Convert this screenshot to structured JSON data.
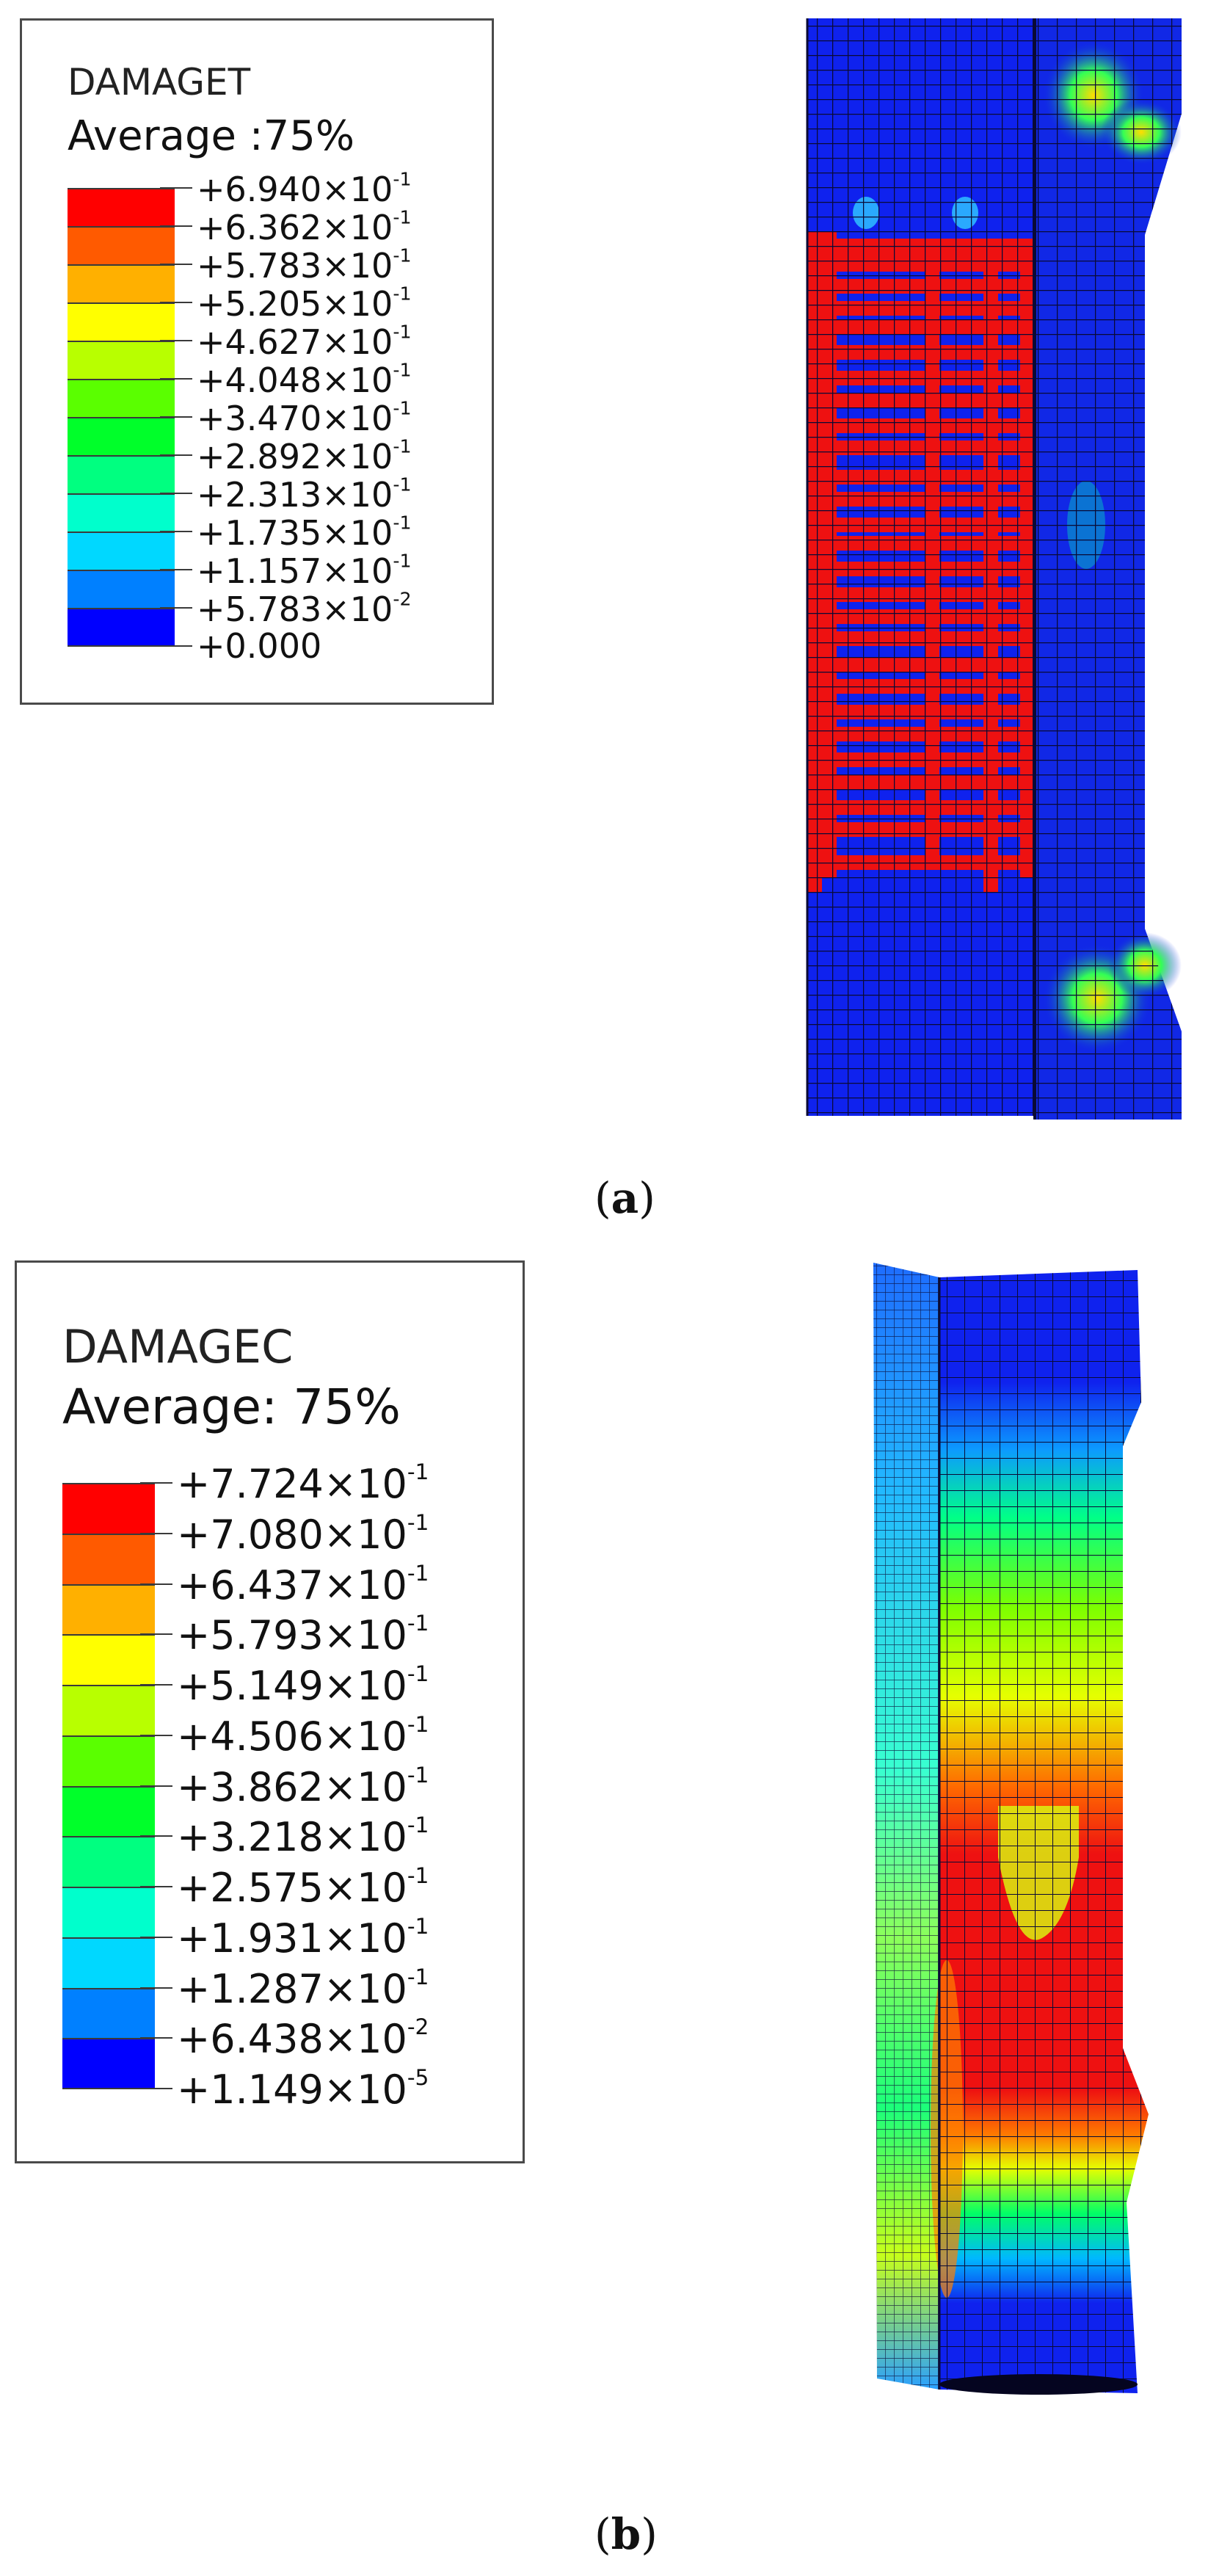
{
  "panel_a": {
    "variable": "DAMAGET",
    "average": "Average :75%",
    "caption_open": "(",
    "caption_letter": "a",
    "caption_close": ")",
    "legend": {
      "labels": [
        {
          "mantissa": "+6.940",
          "times": "×10",
          "exp": "-1"
        },
        {
          "mantissa": "+6.362",
          "times": "×10",
          "exp": "-1"
        },
        {
          "mantissa": "+5.783",
          "times": "×10",
          "exp": "-1"
        },
        {
          "mantissa": "+5.205",
          "times": "×10",
          "exp": "-1"
        },
        {
          "mantissa": "+4.627",
          "times": "×10",
          "exp": "-1"
        },
        {
          "mantissa": "+4.048",
          "times": "×10",
          "exp": "-1"
        },
        {
          "mantissa": "+3.470",
          "times": "×10",
          "exp": "-1"
        },
        {
          "mantissa": "+2.892",
          "times": "×10",
          "exp": "-1"
        },
        {
          "mantissa": "+2.313",
          "times": "×10",
          "exp": "-1"
        },
        {
          "mantissa": "+1.735",
          "times": "×10",
          "exp": "-1"
        },
        {
          "mantissa": "+1.157",
          "times": "×10",
          "exp": "-1"
        },
        {
          "mantissa": "+5.783",
          "times": "×10",
          "exp": "-2"
        },
        {
          "mantissa": "+0.000",
          "times": "",
          "exp": ""
        }
      ]
    }
  },
  "panel_b": {
    "variable": "DAMAGEC",
    "average": "Average: 75%",
    "caption_open": "(",
    "caption_letter": "b",
    "caption_close": ")",
    "legend": {
      "labels": [
        {
          "mantissa": "+7.724",
          "times": "×10",
          "exp": "-1"
        },
        {
          "mantissa": "+7.080",
          "times": "×10",
          "exp": "-1"
        },
        {
          "mantissa": "+6.437",
          "times": "×10",
          "exp": "-1"
        },
        {
          "mantissa": "+5.793",
          "times": "×10",
          "exp": "-1"
        },
        {
          "mantissa": "+5.149",
          "times": "×10",
          "exp": "-1"
        },
        {
          "mantissa": "+4.506",
          "times": "×10",
          "exp": "-1"
        },
        {
          "mantissa": "+3.862",
          "times": "×10",
          "exp": "-1"
        },
        {
          "mantissa": "+3.218",
          "times": "×10",
          "exp": "-1"
        },
        {
          "mantissa": "+2.575",
          "times": "×10",
          "exp": "-1"
        },
        {
          "mantissa": "+1.931",
          "times": "×10",
          "exp": "-1"
        },
        {
          "mantissa": "+1.287",
          "times": "×10",
          "exp": "-1"
        },
        {
          "mantissa": "+6.438",
          "times": "×10",
          "exp": "-2"
        },
        {
          "mantissa": "+1.149",
          "times": "×10",
          "exp": "-5"
        }
      ]
    }
  },
  "colormap": [
    "#ff0000",
    "#ff5a00",
    "#ffb000",
    "#ffff00",
    "#b8ff00",
    "#5aff00",
    "#00ff2a",
    "#00ff80",
    "#00ffcc",
    "#00d8ff",
    "#0080ff",
    "#0000ff"
  ],
  "specimen_colors": {
    "blue": "#0f22ee",
    "red": "#ee1111",
    "mesh": "#0a0a35"
  }
}
